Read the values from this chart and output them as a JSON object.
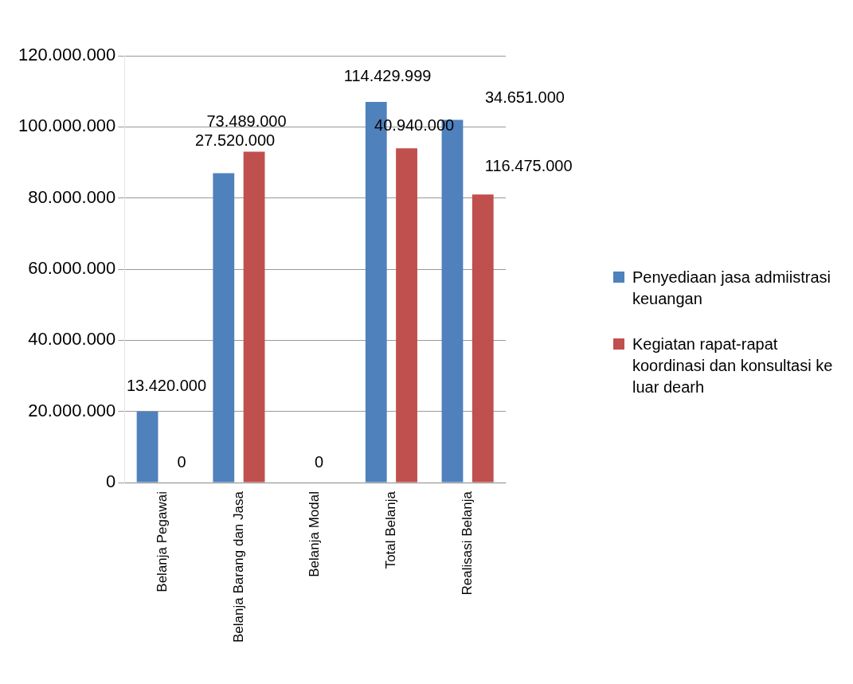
{
  "chart_data": {
    "type": "bar",
    "categories": [
      "Belanja Pegawai",
      "Belanja Barang dan Jasa",
      "Belanja Modal",
      "Total Belanja",
      "Realisasi Belanja"
    ],
    "series": [
      {
        "name": "Penyediaan jasa admiistrasi keuangan",
        "color": "#4f81bd",
        "values": [
          20000000,
          87000000,
          0,
          107000000,
          102000000
        ]
      },
      {
        "name": "Kegiatan rapat-rapat koordinasi dan konsultasi ke luar dearh",
        "color": "#c0504d",
        "values": [
          0,
          93000000,
          0,
          94000000,
          81000000
        ]
      }
    ],
    "annotations": [
      "13.420.000",
      "0",
      "73.489.000",
      "27.520.000",
      "0",
      "114.429.999",
      "40.940.000",
      "34.651.000",
      "116.475.000"
    ],
    "ylim": [
      0,
      120000000
    ],
    "yticks": [
      {
        "value": 0,
        "label": "0"
      },
      {
        "value": 20000000,
        "label": "20.000.000"
      },
      {
        "value": 40000000,
        "label": "40.000.000"
      },
      {
        "value": 60000000,
        "label": "60.000.000"
      },
      {
        "value": 80000000,
        "label": "80.000.000"
      },
      {
        "value": 100000000,
        "label": "100.000.000"
      },
      {
        "value": 120000000,
        "label": "120.000.000"
      }
    ],
    "grid": "y",
    "legend": "right"
  }
}
